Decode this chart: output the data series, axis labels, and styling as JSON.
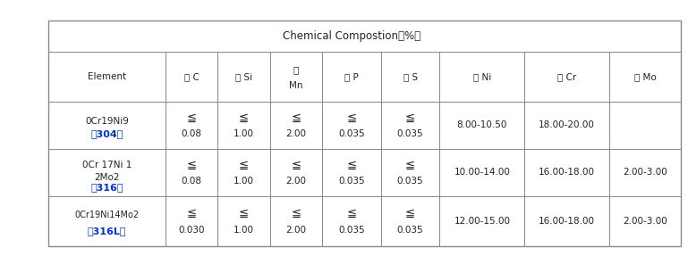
{
  "title": "Chemical Compostion（%）",
  "col_headers_line1": [
    "Element",
    "碳 C",
    "硅 Si",
    "锤",
    "磷 P",
    "硫 S",
    "镍 Ni",
    "铬 Cr",
    "鍄 Mo"
  ],
  "col_headers_line2": [
    "",
    "",
    "",
    "Mn",
    "",
    "",
    "",
    "",
    ""
  ],
  "rows": [
    {
      "name_lines": [
        "0Cr19Ni9（304）"
      ],
      "name_blue_parts": [
        false
      ],
      "name_inline_blue": true,
      "C_sym": "≦",
      "C_val": "0.08",
      "Si_sym": "≦",
      "Si_val": "1.00",
      "Mn_sym": "≦",
      "Mn_val": "2.00",
      "P_sym": "≦",
      "P_val": "0.035",
      "S_sym": "≦",
      "S_val": "0.035",
      "Ni": "8.00-10.50",
      "Cr": "18.00-20.00",
      "Mo": ""
    },
    {
      "name_lines": [
        "0Cr 17Ni 1",
        "2Mo2（316）"
      ],
      "name_blue_parts": [
        false,
        false
      ],
      "name_inline_blue": true,
      "C_sym": "≦",
      "C_val": "0.08",
      "Si_sym": "≦",
      "Si_val": "1.00",
      "Mn_sym": "≦",
      "Mn_val": "2.00",
      "P_sym": "≦",
      "P_val": "0.035",
      "S_sym": "≦",
      "S_val": "0.035",
      "Ni": "10.00-14.00",
      "Cr": "16.00-18.00",
      "Mo": "2.00-3.00"
    },
    {
      "name_lines": [
        "0Cr19Ni14Mo2",
        "（316L）"
      ],
      "name_blue_parts": [
        false,
        true
      ],
      "name_inline_blue": false,
      "C_sym": "≦",
      "C_val": "0.030",
      "Si_sym": "≦",
      "Si_val": "1.00",
      "Mn_sym": "≦",
      "Mn_val": "2.00",
      "P_sym": "≦",
      "P_val": "0.035",
      "S_sym": "≦",
      "S_val": "0.035",
      "Ni": "12.00-15.00",
      "Cr": "16.00-18.00",
      "Mo": "2.00-3.00"
    }
  ],
  "col_widths": [
    1.8,
    0.8,
    0.8,
    0.8,
    0.9,
    0.9,
    1.3,
    1.3,
    1.1
  ],
  "blue_color": "#0033CC",
  "text_color": "#222222",
  "border_color": "#888888",
  "bg_color": "#ffffff",
  "font_size": 7.5,
  "title_font_size": 8.5
}
